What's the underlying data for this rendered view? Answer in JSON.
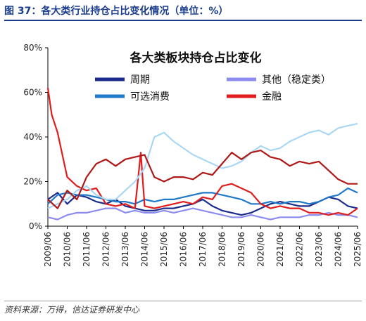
{
  "figure_title": "图 37：各大类行业持仓占比变化情况（单位：%）",
  "source": "资料来源：万得，信达证券研发中心",
  "chart_data": {
    "type": "line",
    "title": "各大类板块持仓占比变化",
    "xlabel": "",
    "ylabel": "",
    "ylim": [
      0,
      80
    ],
    "y_ticks": [
      "0%",
      "20%",
      "40%",
      "60%",
      "80%"
    ],
    "y_tick_values": [
      0,
      20,
      40,
      60,
      80
    ],
    "x_ticks": [
      "2009/06",
      "2010/06",
      "2011/06",
      "2012/06",
      "2013/06",
      "2014/06",
      "2015/06",
      "2016/06",
      "2017/06",
      "2018/06",
      "2019/06",
      "2020/06",
      "2021/06",
      "2022/06",
      "2023/06",
      "2024/06",
      "2025/06"
    ],
    "x_start": 2009.5,
    "x_end": 2025.5,
    "grid": false,
    "legend": "top",
    "series": [
      {
        "name": "周期",
        "color": "#1a2b8c",
        "x": [
          2009.5,
          2010,
          2010.5,
          2011,
          2011.5,
          2012,
          2012.5,
          2013,
          2013.5,
          2014,
          2014.5,
          2015,
          2015.5,
          2016,
          2016.5,
          2017,
          2017.5,
          2018,
          2018.5,
          2019,
          2019.5,
          2020,
          2020.5,
          2021,
          2021.5,
          2022,
          2022.5,
          2023,
          2023.5,
          2024,
          2024.5,
          2025,
          2025.5
        ],
        "values": [
          12,
          15,
          10,
          14,
          13,
          11,
          10,
          12,
          9,
          8,
          7,
          7,
          8,
          8,
          9,
          10,
          12,
          9,
          7,
          6,
          5,
          6,
          8,
          10,
          11,
          10,
          9,
          9,
          11,
          13,
          12,
          9,
          8
        ]
      },
      {
        "name": "其他（稳定类）",
        "color": "#8c8cf0",
        "x": [
          2009.5,
          2010,
          2010.5,
          2011,
          2011.5,
          2012,
          2012.5,
          2013,
          2013.5,
          2014,
          2014.5,
          2015,
          2015.5,
          2016,
          2016.5,
          2017,
          2017.5,
          2018,
          2018.5,
          2019,
          2019.5,
          2020,
          2020.5,
          2021,
          2021.5,
          2022,
          2022.5,
          2023,
          2023.5,
          2024,
          2024.5,
          2025,
          2025.5
        ],
        "values": [
          4,
          3,
          5,
          6,
          6,
          7,
          8,
          8,
          6,
          7,
          6,
          6,
          7,
          6,
          7,
          8,
          7,
          6,
          5,
          4,
          4,
          5,
          4,
          3,
          4,
          4,
          4,
          5,
          5,
          6,
          5,
          5,
          4
        ]
      },
      {
        "name": "可选消费",
        "color": "#1f78c8",
        "x": [
          2009.5,
          2010,
          2010.5,
          2011,
          2011.5,
          2012,
          2012.5,
          2013,
          2013.5,
          2014,
          2014.5,
          2015,
          2015.5,
          2016,
          2016.5,
          2017,
          2017.5,
          2018,
          2018.5,
          2019,
          2019.5,
          2020,
          2020.5,
          2021,
          2021.5,
          2022,
          2022.5,
          2023,
          2023.5,
          2024,
          2024.5,
          2025,
          2025.5
        ],
        "values": [
          10,
          14,
          15,
          14,
          14,
          13,
          12,
          11,
          11,
          10,
          12,
          11,
          12,
          12,
          13,
          14,
          15,
          15,
          14,
          13,
          12,
          10,
          10,
          11,
          10,
          11,
          11,
          10,
          11,
          13,
          14,
          17,
          15
        ]
      },
      {
        "name": "金融",
        "color": "#e01c1c",
        "x": [
          2009.5,
          2009.7,
          2010,
          2010.3,
          2010.5,
          2011,
          2011.5,
          2012,
          2012.5,
          2013,
          2013.5,
          2014,
          2014.3,
          2014.5,
          2015,
          2015.5,
          2016,
          2016.5,
          2017,
          2017.5,
          2018,
          2018.5,
          2019,
          2019.5,
          2020,
          2020.5,
          2021,
          2021.5,
          2022,
          2022.5,
          2023,
          2023.5,
          2024,
          2024.5,
          2025,
          2025.5
        ],
        "values": [
          62,
          50,
          42,
          30,
          22,
          18,
          16,
          17,
          10,
          9,
          10,
          8,
          33,
          9,
          8,
          9,
          10,
          11,
          10,
          13,
          12,
          18,
          19,
          17,
          15,
          10,
          8,
          9,
          8,
          8,
          6,
          6,
          5,
          6,
          5,
          8
        ]
      },
      {
        "name": "",
        "color": "#aad8f4",
        "x": [
          2009.5,
          2010,
          2010.5,
          2011,
          2011.5,
          2012,
          2012.5,
          2013,
          2013.5,
          2014,
          2014.5,
          2015,
          2015.5,
          2016,
          2016.5,
          2017,
          2017.5,
          2018,
          2018.5,
          2019,
          2019.5,
          2020,
          2020.5,
          2021,
          2021.5,
          2022,
          2022.5,
          2023,
          2023.5,
          2024,
          2024.5,
          2025,
          2025.5
        ],
        "values": [
          8,
          10,
          12,
          16,
          18,
          14,
          12,
          12,
          16,
          20,
          26,
          40,
          42,
          38,
          35,
          32,
          30,
          28,
          26,
          27,
          29,
          33,
          36,
          34,
          35,
          38,
          40,
          42,
          43,
          41,
          44,
          45,
          46
        ]
      },
      {
        "name": "",
        "color": "#b01818",
        "x": [
          2009.5,
          2010,
          2010.5,
          2011,
          2011.5,
          2012,
          2012.5,
          2013,
          2013.5,
          2014,
          2014.5,
          2015,
          2015.5,
          2016,
          2016.5,
          2017,
          2017.5,
          2018,
          2018.5,
          2019,
          2019.5,
          2020,
          2020.5,
          2021,
          2021.5,
          2022,
          2022.5,
          2023,
          2023.5,
          2024,
          2024.5,
          2025,
          2025.5
        ],
        "values": [
          12,
          8,
          16,
          12,
          22,
          28,
          30,
          27,
          30,
          31,
          32,
          22,
          20,
          22,
          22,
          21,
          24,
          23,
          28,
          33,
          30,
          33,
          34,
          31,
          30,
          27,
          29,
          28,
          29,
          25,
          21,
          19,
          19
        ]
      }
    ]
  }
}
